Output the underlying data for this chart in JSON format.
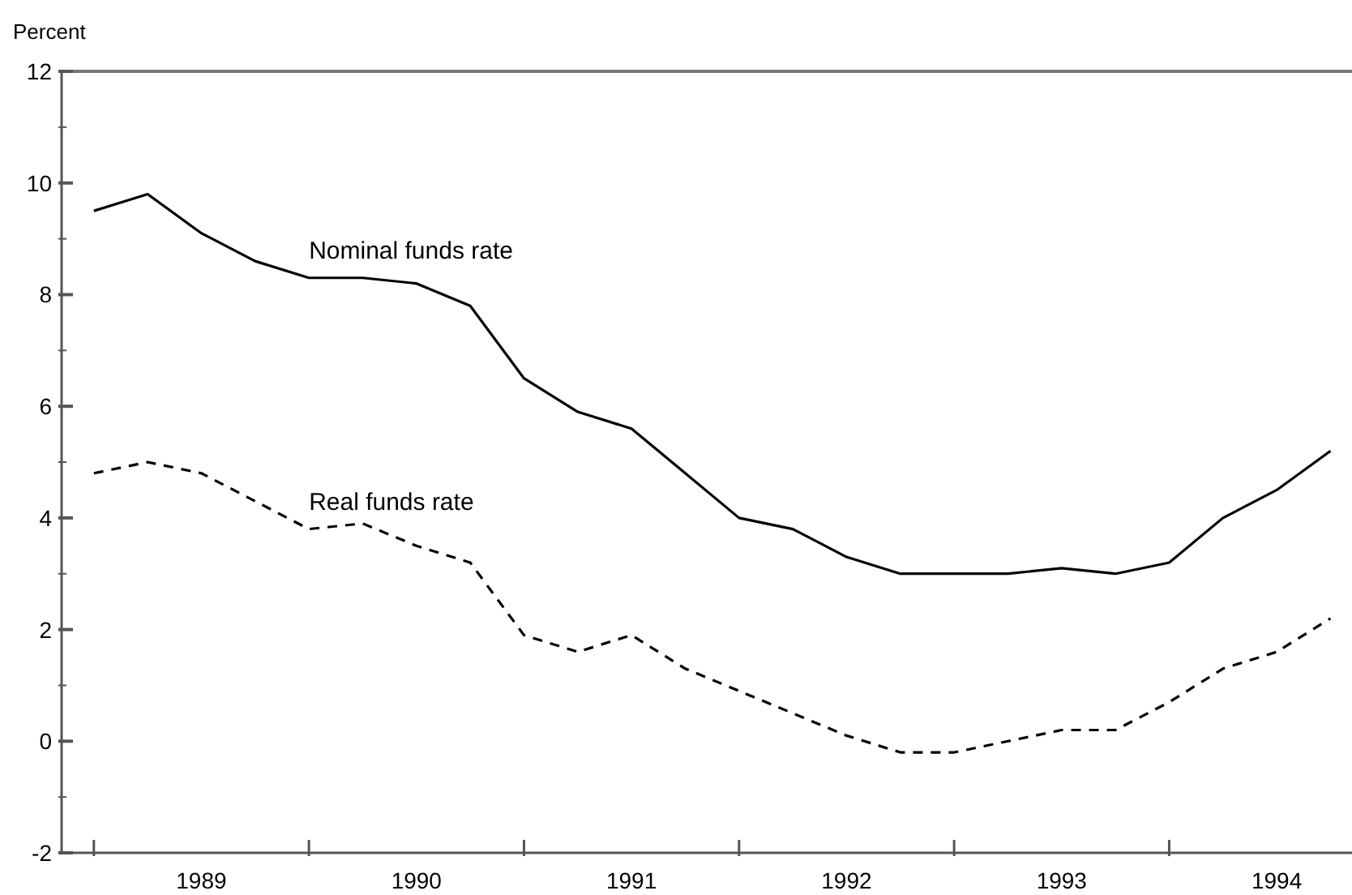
{
  "chart_data": {
    "type": "line",
    "ylabel": "Percent",
    "x": [
      1989,
      1989.25,
      1989.5,
      1989.75,
      1990,
      1990.25,
      1990.5,
      1990.75,
      1991,
      1991.25,
      1991.5,
      1991.75,
      1992,
      1992.25,
      1992.5,
      1992.75,
      1993,
      1993.25,
      1993.5,
      1993.75,
      1994,
      1994.25,
      1994.5,
      1994.75
    ],
    "series": [
      {
        "color": "#000000",
        "line_style": "solid",
        "values": [
          9.5,
          9.8,
          9.1,
          8.6,
          8.3,
          8.3,
          8.2,
          7.8,
          6.5,
          5.9,
          5.6,
          4.8,
          4.0,
          3.8,
          3.3,
          3.0,
          3.0,
          3.0,
          3.1,
          3.0,
          3.2,
          4.0,
          4.5,
          5.2
        ]
      },
      {
        "color": "#000000",
        "line_style": "dashed",
        "values": [
          4.8,
          5.0,
          4.8,
          4.3,
          3.8,
          3.9,
          3.5,
          3.2,
          1.9,
          1.6,
          1.9,
          1.3,
          0.9,
          0.5,
          0.1,
          -0.2,
          -0.2,
          0.0,
          0.2,
          0.2,
          0.7,
          1.3,
          1.6,
          2.2
        ]
      }
    ],
    "xlim": [
      1988.85,
      1994.85
    ],
    "xticks": [
      {
        "value": 1989,
        "label": null
      },
      {
        "value": 1989.5,
        "label": "1989"
      },
      {
        "value": 1990,
        "label": null
      },
      {
        "value": 1990.5,
        "label": "1990"
      },
      {
        "value": 1991,
        "label": null
      },
      {
        "value": 1991.5,
        "label": "1991"
      },
      {
        "value": 1992,
        "label": null
      },
      {
        "value": 1992.5,
        "label": "1992"
      },
      {
        "value": 1993,
        "label": null
      },
      {
        "value": 1993.5,
        "label": "1993"
      },
      {
        "value": 1994,
        "label": null
      },
      {
        "value": 1994.5,
        "label": "1994"
      }
    ],
    "ylim": [
      -2,
      12
    ],
    "yticks": [
      -2,
      {
        "value": -1,
        "label": null
      },
      0,
      {
        "value": 1,
        "label": null
      },
      2,
      {
        "value": 3,
        "label": null
      },
      4,
      {
        "value": 5,
        "label": null
      },
      6,
      {
        "value": 7,
        "label": null
      },
      8,
      {
        "value": 9,
        "label": null
      },
      10,
      {
        "value": 11,
        "label": null
      },
      12
    ],
    "annotations": [
      "Nominal funds rate",
      "Real funds rate"
    ],
    "grid": false,
    "legend": false
  }
}
